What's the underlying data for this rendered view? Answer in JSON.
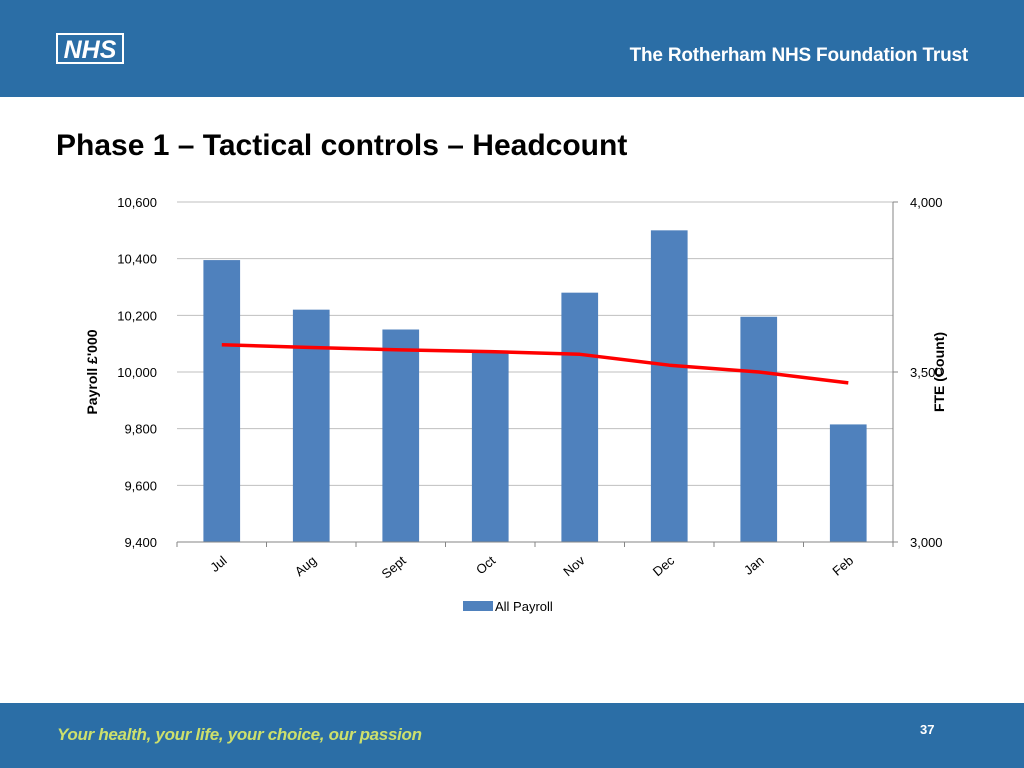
{
  "header": {
    "logo_text": "NHS",
    "org_name": "The Rotherham NHS Foundation Trust"
  },
  "slide": {
    "title": "Phase 1 – Tactical controls – Headcount"
  },
  "footer": {
    "tagline": "Your health, your life, your choice, our passion",
    "page_number": "37"
  },
  "colors": {
    "brand_blue": "#2b6ea6",
    "bar_blue": "#4f81bd",
    "line_red": "#ff0000",
    "tagline_green": "#cde06c"
  },
  "chart_data": {
    "type": "bar",
    "title": "",
    "categories": [
      "Jul",
      "Aug",
      "Sept",
      "Oct",
      "Nov",
      "Dec",
      "Jan",
      "Feb"
    ],
    "ylabel": "Payroll £'000",
    "y2label": "FTE (Count)",
    "ylim": [
      9400,
      10600
    ],
    "y2lim": [
      3000,
      4000
    ],
    "yticks": [
      "9,400",
      "9,600",
      "9,800",
      "10,000",
      "10,200",
      "10,400",
      "10,600"
    ],
    "y2ticks": [
      "3,000",
      "3,500",
      "4,000"
    ],
    "grid": true,
    "legend_position": "bottom",
    "series": [
      {
        "name": "All Payroll",
        "type": "bar",
        "axis": "left",
        "values": [
          10395,
          10220,
          10150,
          10075,
          10280,
          10500,
          10195,
          9815
        ]
      },
      {
        "type": "line",
        "axis": "right",
        "values": [
          3580,
          3572,
          3565,
          3560,
          3552,
          3520,
          3500,
          3468
        ]
      }
    ]
  }
}
